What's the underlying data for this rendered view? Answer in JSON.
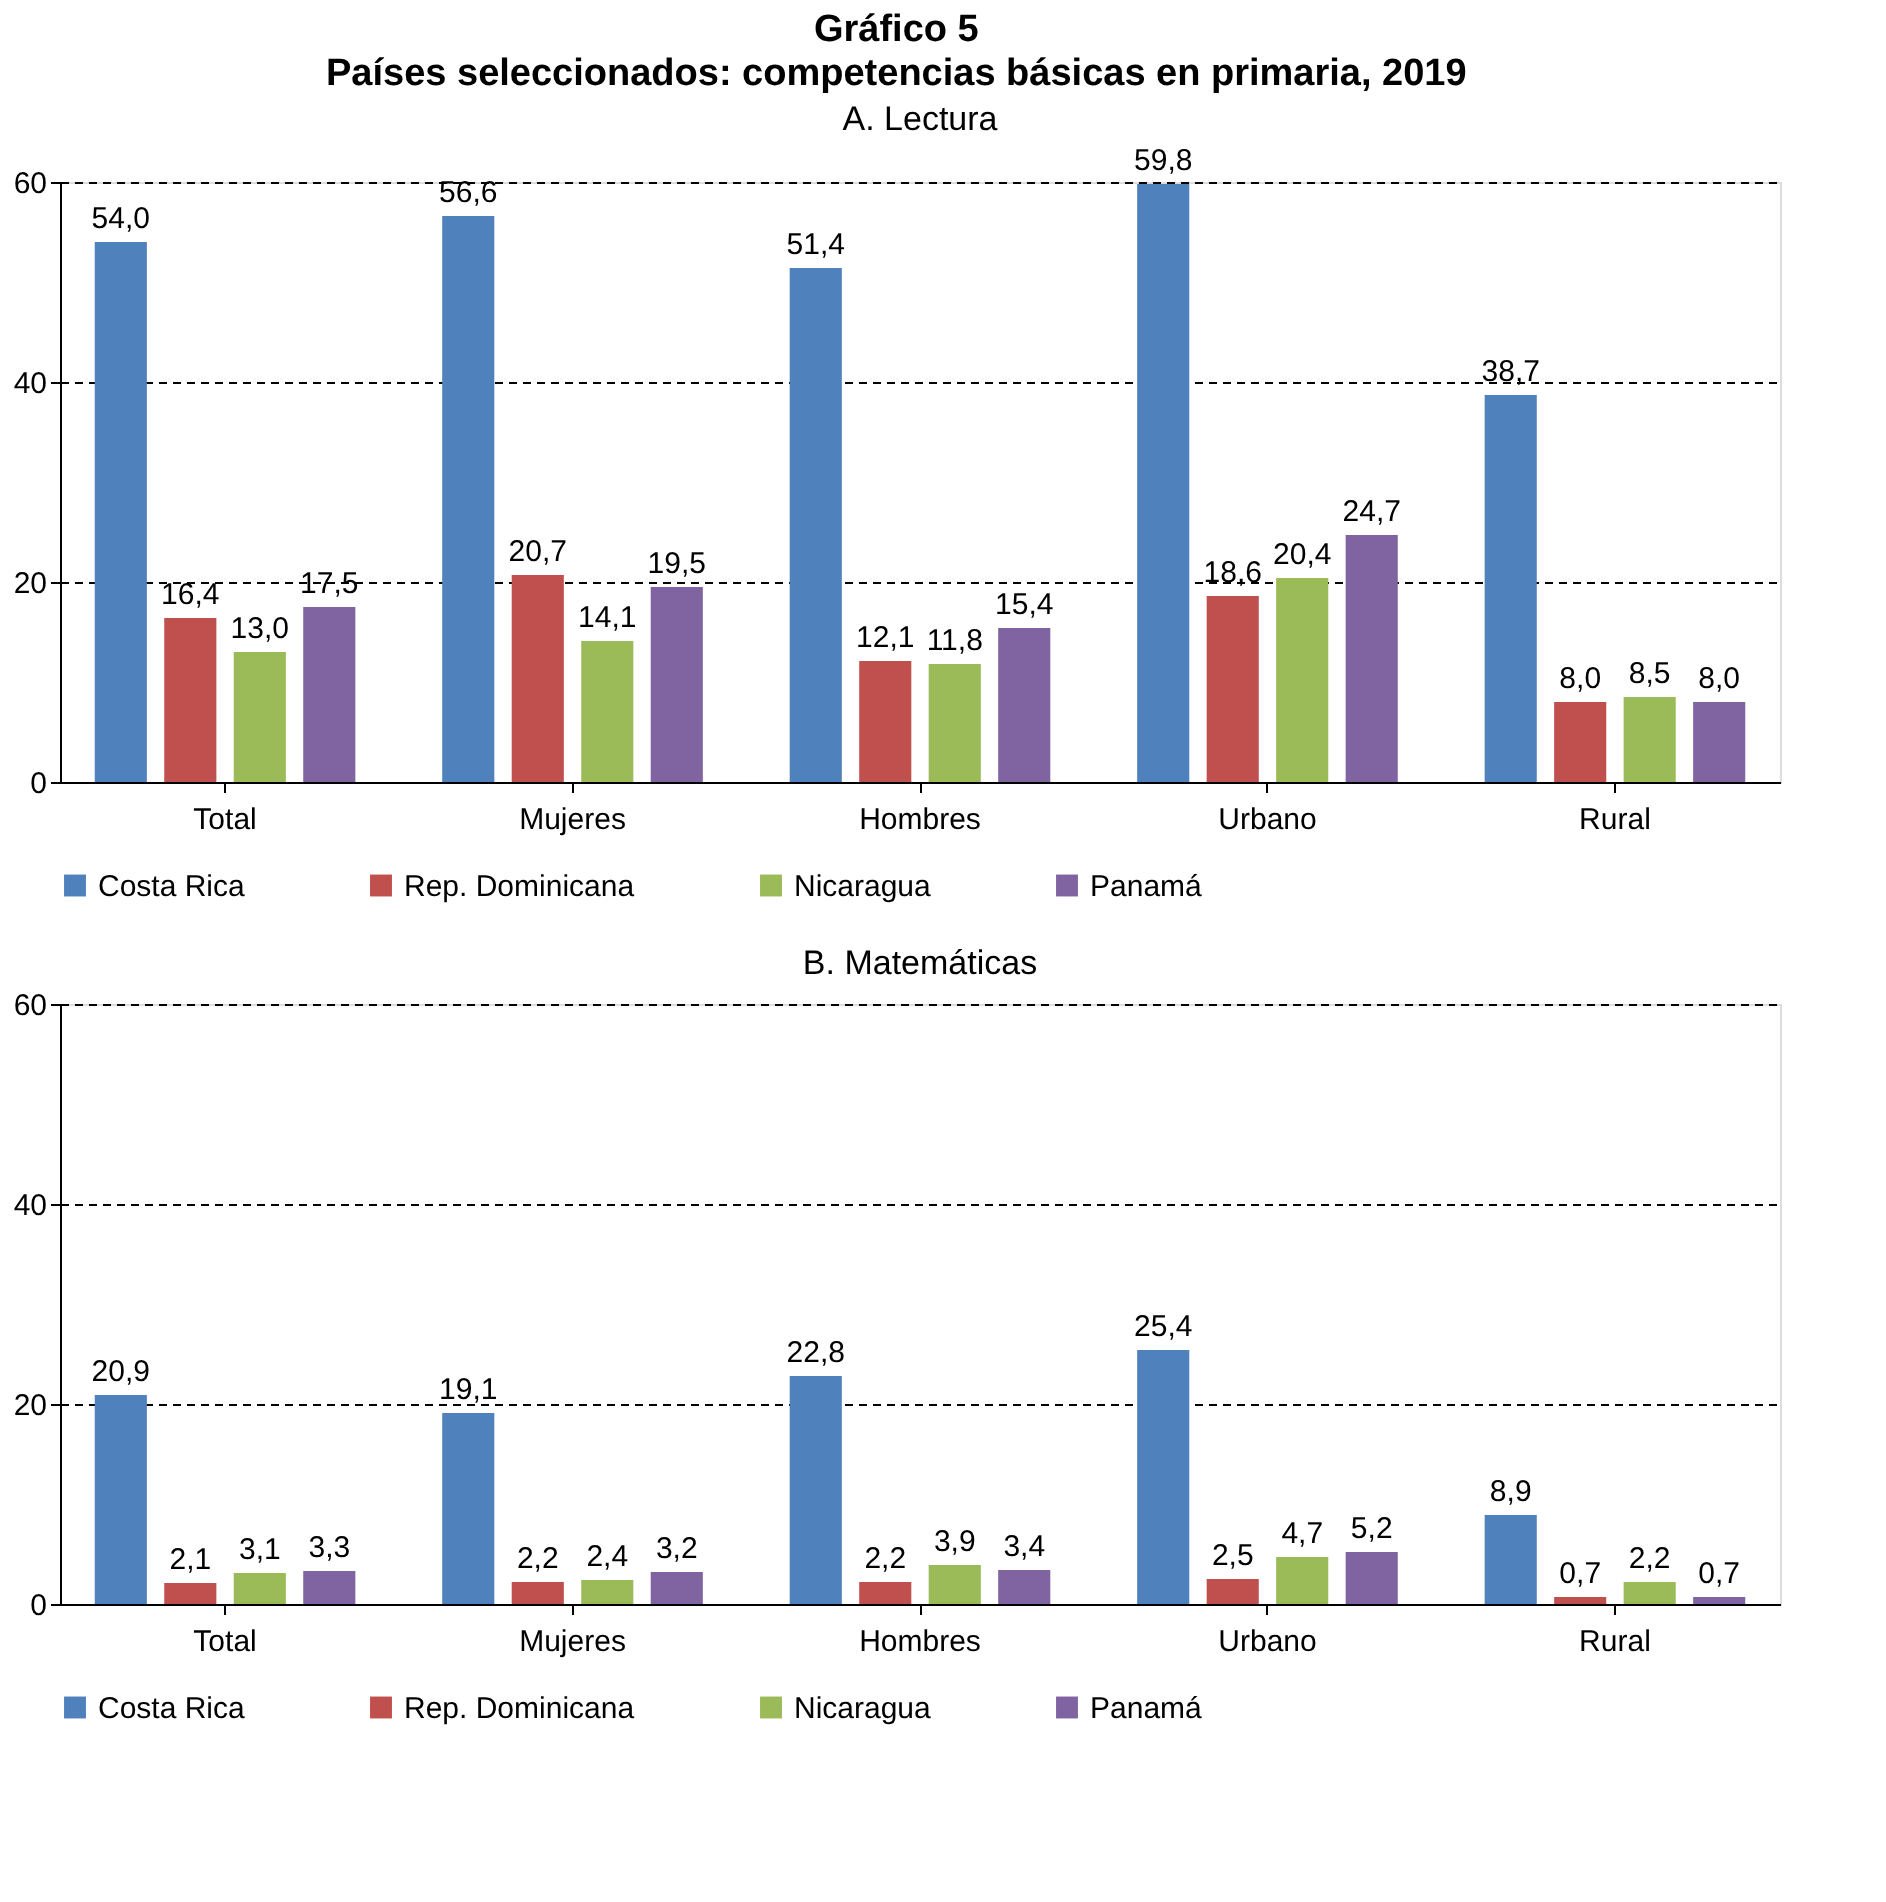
{
  "chart_data": [
    {
      "type": "other",
      "title": "Gráfico 5",
      "subtitle": "Países seleccionados: competencias básicas en primaria, 2019"
    },
    {
      "type": "bar",
      "title": "A. Lectura",
      "categories": [
        "Total",
        "Mujeres",
        "Hombres",
        "Urbano",
        "Rural"
      ],
      "series": [
        {
          "name": "Costa Rica",
          "color": "#4f81bd",
          "values": [
            54.0,
            56.6,
            51.4,
            59.8,
            38.7
          ],
          "value_labels": [
            "54,0",
            "56,6",
            "51,4",
            "59,8",
            "38,7"
          ]
        },
        {
          "name": "Rep. Dominicana",
          "color": "#c0504d",
          "values": [
            16.4,
            20.7,
            12.1,
            18.6,
            8.0
          ],
          "value_labels": [
            "16,4",
            "20,7",
            "12,1",
            "18,6",
            "8,0"
          ]
        },
        {
          "name": "Nicaragua",
          "color": "#9bbb59",
          "values": [
            13.0,
            14.1,
            11.8,
            20.4,
            8.5
          ],
          "value_labels": [
            "13,0",
            "14,1",
            "11,8",
            "20,4",
            "8,5"
          ]
        },
        {
          "name": "Panamá",
          "color": "#8064a2",
          "values": [
            17.5,
            19.5,
            15.4,
            24.7,
            8.0
          ],
          "value_labels": [
            "17,5",
            "19,5",
            "15,4",
            "24,7",
            "8,0"
          ]
        }
      ],
      "ylim": [
        0,
        60
      ],
      "yticks": [
        0,
        20,
        40,
        60
      ],
      "grid": "y",
      "legend": "bottom"
    },
    {
      "type": "bar",
      "title": "B. Matemáticas",
      "categories": [
        "Total",
        "Mujeres",
        "Hombres",
        "Urbano",
        "Rural"
      ],
      "series": [
        {
          "name": "Costa Rica",
          "color": "#4f81bd",
          "values": [
            20.9,
            19.1,
            22.8,
            25.4,
            8.9
          ],
          "value_labels": [
            "20,9",
            "19,1",
            "22,8",
            "25,4",
            "8,9"
          ]
        },
        {
          "name": "Rep. Dominicana",
          "color": "#c0504d",
          "values": [
            2.1,
            2.2,
            2.2,
            2.5,
            0.7
          ],
          "value_labels": [
            "2,1",
            "2,2",
            "2,2",
            "2,5",
            "0,7"
          ]
        },
        {
          "name": "Nicaragua",
          "color": "#9bbb59",
          "values": [
            3.1,
            2.4,
            3.9,
            4.7,
            2.2
          ],
          "value_labels": [
            "3,1",
            "2,4",
            "3,9",
            "4,7",
            "2,2"
          ]
        },
        {
          "name": "Panamá",
          "color": "#8064a2",
          "values": [
            3.3,
            3.2,
            3.4,
            5.2,
            0.7
          ],
          "value_labels": [
            "3,3",
            "3,2",
            "3,4",
            "5,2",
            "0,7"
          ]
        }
      ],
      "ylim": [
        0,
        60
      ],
      "yticks": [
        0,
        20,
        40,
        60
      ],
      "grid": "y",
      "legend": "bottom"
    }
  ]
}
